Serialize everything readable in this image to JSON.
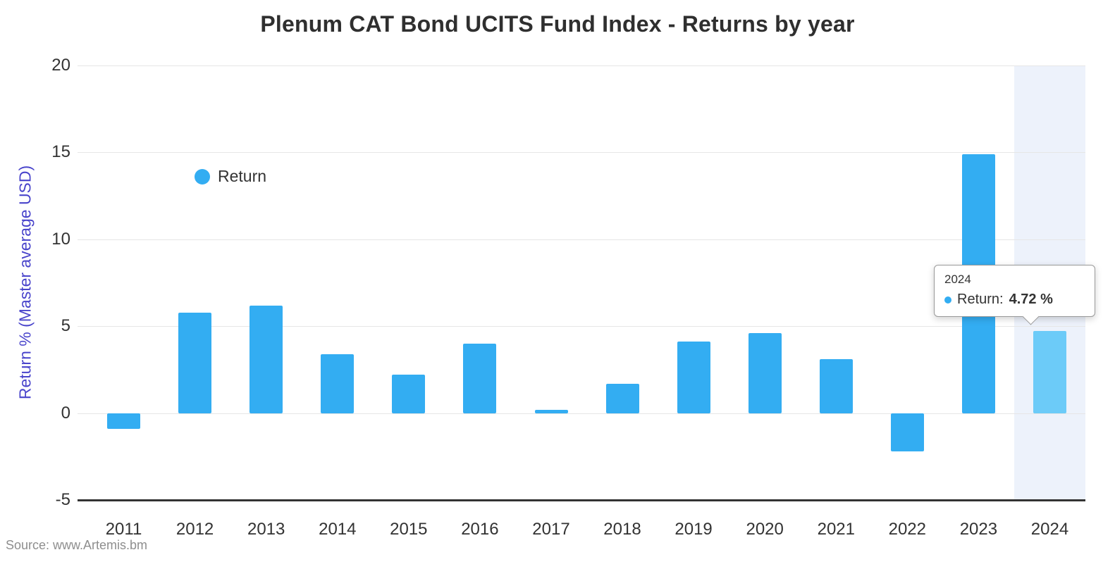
{
  "page": {
    "source": "Source: www.Artemis.bm"
  },
  "legend": {
    "label": "Return"
  },
  "tooltip": {
    "header": "2024",
    "label": "Return:",
    "value": "4.72 %"
  },
  "chart_data": {
    "type": "bar",
    "title": "Plenum CAT Bond UCITS Fund Index - Returns by year",
    "ylabel": "Return % (Master average USD)",
    "xlabel": "",
    "categories": [
      "2011",
      "2012",
      "2013",
      "2014",
      "2015",
      "2016",
      "2017",
      "2018",
      "2019",
      "2020",
      "2021",
      "2022",
      "2023",
      "2024"
    ],
    "series": [
      {
        "name": "Return",
        "values": [
          -0.9,
          5.8,
          6.2,
          3.4,
          2.2,
          4.0,
          0.2,
          1.7,
          4.1,
          4.6,
          3.1,
          -2.2,
          14.9,
          4.72
        ]
      }
    ],
    "yticks": [
      20,
      15,
      10,
      5,
      0,
      -5
    ],
    "ylim": [
      -5,
      20
    ],
    "grid": true,
    "legend_position": "top-left-inside",
    "highlighted_index": 13,
    "colors": {
      "bar": "#33ADF2",
      "bar_highlight": "#6CCBF8",
      "hover_band": "#EDF2FB",
      "gridline": "#E6E6E6",
      "axis_line": "#333333",
      "tick_text": "#333333",
      "ylabel_text": "#4944CB",
      "title_text": "#2F2F2F",
      "source_text": "#8E8E8E"
    }
  }
}
